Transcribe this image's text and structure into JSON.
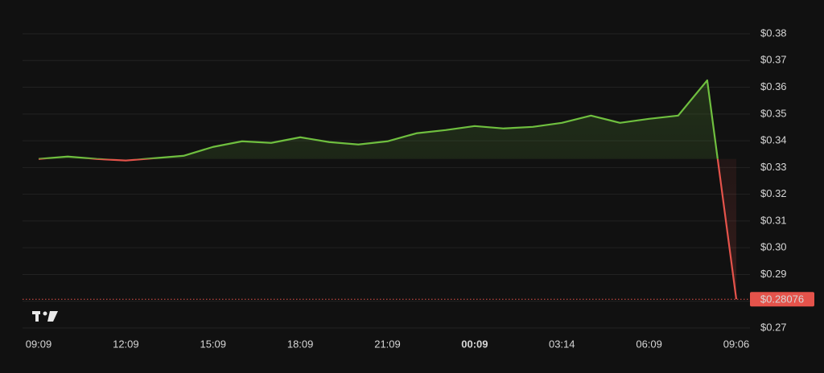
{
  "chart_data": {
    "type": "line",
    "categories": [
      "09:09",
      null,
      null,
      "12:09",
      null,
      null,
      "15:09",
      null,
      null,
      "18:09",
      null,
      null,
      "21:09",
      null,
      null,
      "00:09",
      null,
      null,
      "03:14",
      null,
      null,
      "06:09",
      null,
      null,
      "09:06"
    ],
    "bold_category": "00:09",
    "values": [
      0.3332,
      0.3341,
      0.3332,
      0.3326,
      0.3335,
      0.3344,
      0.3377,
      0.3398,
      0.3392,
      0.3413,
      0.3395,
      0.3386,
      0.3398,
      0.3428,
      0.344,
      0.3455,
      0.3446,
      0.3452,
      0.3467,
      0.3494,
      0.3467,
      0.3482,
      0.3494,
      0.3626,
      0.28076
    ],
    "value_labels": [
      null,
      null,
      null,
      null,
      null,
      null,
      null,
      null,
      null,
      null,
      null,
      null,
      null,
      null,
      null,
      null,
      null,
      null,
      null,
      null,
      null,
      null,
      null,
      null,
      "$0.28076"
    ],
    "up_color": "#6fbf3f",
    "down_color": "#e5534b",
    "ylim": [
      0.27,
      0.38
    ],
    "yticks": [
      {
        "value": 0.27,
        "label": "$0.27"
      },
      {
        "value": 0.28,
        "label": "$0.28"
      },
      {
        "value": 0.29,
        "label": "$0.29"
      },
      {
        "value": 0.3,
        "label": "$0.30"
      },
      {
        "value": 0.31,
        "label": "$0.31"
      },
      {
        "value": 0.32,
        "label": "$0.32"
      },
      {
        "value": 0.33,
        "label": "$0.33"
      },
      {
        "value": 0.34,
        "label": "$0.34"
      },
      {
        "value": 0.35,
        "label": "$0.35"
      },
      {
        "value": 0.36,
        "label": "$0.36"
      },
      {
        "value": 0.37,
        "label": "$0.37"
      },
      {
        "value": 0.38,
        "label": "$0.38"
      }
    ],
    "grid": true
  }
}
